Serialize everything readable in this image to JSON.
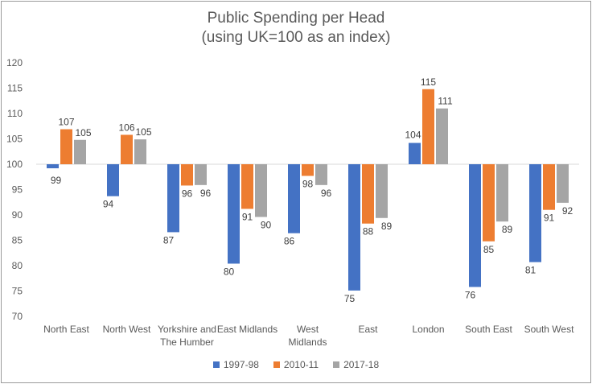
{
  "chart_data": {
    "type": "bar",
    "title": "Public Spending per Head",
    "subtitle": "(using UK=100 as an index)",
    "xlabel": "",
    "ylabel": "",
    "ylim": [
      70,
      120
    ],
    "yticks": [
      70,
      75,
      80,
      85,
      90,
      95,
      100,
      105,
      110,
      115,
      120
    ],
    "baseline": 100,
    "grid": false,
    "legend_position": "bottom",
    "categories": [
      [
        "North East"
      ],
      [
        "North West"
      ],
      [
        "Yorkshire and",
        "The Humber"
      ],
      [
        "East Midlands"
      ],
      [
        "West",
        "Midlands"
      ],
      [
        "East"
      ],
      [
        "London"
      ],
      [
        "South East"
      ],
      [
        "South West"
      ]
    ],
    "series": [
      {
        "name": "1997-98",
        "color": "#4472C4",
        "values": [
          99,
          94,
          87,
          80,
          86,
          75,
          104,
          76,
          81
        ],
        "exact": [
          99.2,
          93.7,
          86.6,
          80.4,
          86.4,
          75.1,
          104.2,
          75.8,
          80.7
        ]
      },
      {
        "name": "2010-11",
        "color": "#ED7D31",
        "values": [
          107,
          106,
          96,
          91,
          98,
          88,
          115,
          85,
          91
        ],
        "exact": [
          106.9,
          105.8,
          95.8,
          91.2,
          97.7,
          88.3,
          114.8,
          84.8,
          91.0
        ]
      },
      {
        "name": "2017-18",
        "color": "#A5A5A5",
        "values": [
          105,
          105,
          96,
          90,
          96,
          89,
          111,
          89,
          92
        ],
        "exact": [
          104.8,
          104.9,
          95.9,
          89.6,
          95.9,
          89.4,
          111.0,
          88.7,
          92.4
        ]
      }
    ]
  }
}
